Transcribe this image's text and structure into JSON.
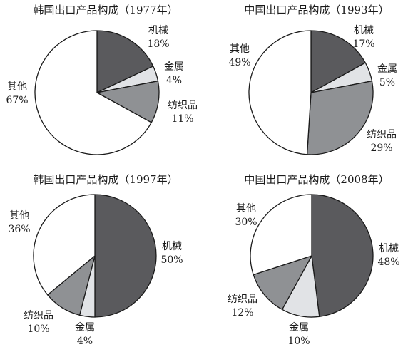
{
  "colors": {
    "machinery": "#5a5a5d",
    "metal": "#e1e3e6",
    "textiles": "#8f9194",
    "other": "#ffffff",
    "outline": "#1a1a1a"
  },
  "chart_data": [
    {
      "type": "pie",
      "title": "韩国出口产品构成（1977年）",
      "slices": [
        {
          "key": "machinery",
          "name": "机械",
          "value": 18,
          "label": "18%"
        },
        {
          "key": "metal",
          "name": "金属",
          "value": 4,
          "label": "4%"
        },
        {
          "key": "textiles",
          "name": "纺织品",
          "value": 11,
          "label": "11%"
        },
        {
          "key": "other",
          "name": "其他",
          "value": 67,
          "label": "67%"
        }
      ]
    },
    {
      "type": "pie",
      "title": "中国出口产品构成（1993年）",
      "slices": [
        {
          "key": "machinery",
          "name": "机械",
          "value": 17,
          "label": "17%"
        },
        {
          "key": "metal",
          "name": "金属",
          "value": 5,
          "label": "5%"
        },
        {
          "key": "textiles",
          "name": "纺织品",
          "value": 29,
          "label": "29%"
        },
        {
          "key": "other",
          "name": "其他",
          "value": 49,
          "label": "49%"
        }
      ]
    },
    {
      "type": "pie",
      "title": "韩国出口产品构成（1997年）",
      "slices": [
        {
          "key": "machinery",
          "name": "机械",
          "value": 50,
          "label": "50%"
        },
        {
          "key": "metal",
          "name": "金属",
          "value": 4,
          "label": "4%"
        },
        {
          "key": "textiles",
          "name": "纺织品",
          "value": 10,
          "label": "10%"
        },
        {
          "key": "other",
          "name": "其他",
          "value": 36,
          "label": "36%"
        }
      ]
    },
    {
      "type": "pie",
      "title": "中国出口产品构成（2008年）",
      "slices": [
        {
          "key": "machinery",
          "name": "机械",
          "value": 48,
          "label": "48%"
        },
        {
          "key": "metal",
          "name": "金属",
          "value": 10,
          "label": "10%"
        },
        {
          "key": "textiles",
          "name": "纺织品",
          "value": 12,
          "label": "12%"
        },
        {
          "key": "other",
          "name": "其他",
          "value": 30,
          "label": "30%"
        }
      ]
    }
  ]
}
